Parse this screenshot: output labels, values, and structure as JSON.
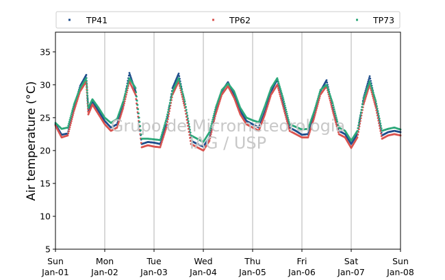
{
  "chart_data": {
    "type": "scatter",
    "ylabel": "Air temperature (°C)",
    "xlabel": "",
    "ylim": [
      5,
      38
    ],
    "yticks": [
      5,
      10,
      15,
      20,
      25,
      30,
      35
    ],
    "xlim": [
      "2000-01-01",
      "2000-01-08"
    ],
    "xtick_days": [
      "Sun",
      "Mon",
      "Tue",
      "Wed",
      "Thu",
      "Fri",
      "Sat",
      "Sun"
    ],
    "xtick_dates": [
      "Jan-01",
      "Jan-02",
      "Jan-03",
      "Jan-04",
      "Jan-05",
      "Jan-06",
      "Jan-07",
      "Jan-08"
    ],
    "grid": "vertical lines at day boundaries",
    "legend_position": "top, above plot, 3 columns",
    "watermark": [
      "Grupo de Micrometeorologia",
      "IAG / USP"
    ],
    "series": [
      {
        "name": "TP41",
        "color": "#1f4e8c",
        "points": [
          [
            "2000-01-01 00:00",
            24.0
          ],
          [
            "2000-01-01 03:00",
            22.4
          ],
          [
            "2000-01-01 06:00",
            22.6
          ],
          [
            "2000-01-01 09:00",
            26.5
          ],
          [
            "2000-01-01 12:00",
            29.8
          ],
          [
            "2000-01-01 15:00",
            31.5
          ],
          [
            "2000-01-01 16:00",
            26.0
          ],
          [
            "2000-01-01 18:00",
            27.5
          ],
          [
            "2000-01-01 21:00",
            26.0
          ],
          [
            "2000-01-02 00:00",
            24.5
          ],
          [
            "2000-01-02 03:00",
            23.5
          ],
          [
            "2000-01-02 06:00",
            24.0
          ],
          [
            "2000-01-02 09:00",
            27.0
          ],
          [
            "2000-01-02 12:00",
            31.8
          ],
          [
            "2000-01-02 15:00",
            29.0
          ],
          [
            "2000-01-02 18:00",
            21.0
          ],
          [
            "2000-01-02 21:00",
            21.3
          ],
          [
            "2000-01-03 00:00",
            21.2
          ],
          [
            "2000-01-03 03:00",
            21.0
          ],
          [
            "2000-01-03 06:00",
            24.0
          ],
          [
            "2000-01-03 09:00",
            29.5
          ],
          [
            "2000-01-03 12:00",
            31.7
          ],
          [
            "2000-01-03 15:00",
            27.0
          ],
          [
            "2000-01-03 18:00",
            21.5
          ],
          [
            "2000-01-03 21:00",
            21.0
          ],
          [
            "2000-01-04 00:00",
            20.6
          ],
          [
            "2000-01-04 03:00",
            22.0
          ],
          [
            "2000-01-04 06:00",
            26.0
          ],
          [
            "2000-01-04 09:00",
            29.0
          ],
          [
            "2000-01-04 12:00",
            30.4
          ],
          [
            "2000-01-04 15:00",
            28.5
          ],
          [
            "2000-01-04 18:00",
            26.0
          ],
          [
            "2000-01-04 21:00",
            24.5
          ],
          [
            "2000-01-05 00:00",
            24.0
          ],
          [
            "2000-01-05 03:00",
            23.5
          ],
          [
            "2000-01-05 06:00",
            26.0
          ],
          [
            "2000-01-05 09:00",
            29.0
          ],
          [
            "2000-01-05 12:00",
            30.8
          ],
          [
            "2000-01-05 15:00",
            27.0
          ],
          [
            "2000-01-05 18:00",
            23.5
          ],
          [
            "2000-01-05 21:00",
            23.0
          ],
          [
            "2000-01-06 00:00",
            22.4
          ],
          [
            "2000-01-06 03:00",
            22.5
          ],
          [
            "2000-01-06 06:00",
            25.5
          ],
          [
            "2000-01-06 09:00",
            29.0
          ],
          [
            "2000-01-06 12:00",
            30.7
          ],
          [
            "2000-01-06 15:00",
            26.5
          ],
          [
            "2000-01-06 18:00",
            23.0
          ],
          [
            "2000-01-06 21:00",
            22.5
          ],
          [
            "2000-01-07 00:00",
            21.0
          ],
          [
            "2000-01-07 03:00",
            22.5
          ],
          [
            "2000-01-07 06:00",
            28.0
          ],
          [
            "2000-01-07 09:00",
            31.3
          ],
          [
            "2000-01-07 12:00",
            27.0
          ],
          [
            "2000-01-07 15:00",
            22.3
          ],
          [
            "2000-01-07 18:00",
            22.8
          ],
          [
            "2000-01-07 21:00",
            23.0
          ],
          [
            "2000-01-08 00:00",
            22.8
          ]
        ]
      },
      {
        "name": "TP62",
        "color": "#d9534f",
        "points": [
          [
            "2000-01-01 00:00",
            23.8
          ],
          [
            "2000-01-01 03:00",
            22.0
          ],
          [
            "2000-01-01 06:00",
            22.3
          ],
          [
            "2000-01-01 09:00",
            26.0
          ],
          [
            "2000-01-01 12:00",
            29.0
          ],
          [
            "2000-01-01 15:00",
            30.5
          ],
          [
            "2000-01-01 16:00",
            25.5
          ],
          [
            "2000-01-01 18:00",
            27.0
          ],
          [
            "2000-01-01 21:00",
            25.5
          ],
          [
            "2000-01-02 00:00",
            24.0
          ],
          [
            "2000-01-02 03:00",
            23.0
          ],
          [
            "2000-01-02 06:00",
            23.5
          ],
          [
            "2000-01-02 09:00",
            26.5
          ],
          [
            "2000-01-02 12:00",
            30.5
          ],
          [
            "2000-01-02 15:00",
            28.5
          ],
          [
            "2000-01-02 18:00",
            20.5
          ],
          [
            "2000-01-02 21:00",
            20.8
          ],
          [
            "2000-01-03 00:00",
            20.6
          ],
          [
            "2000-01-03 03:00",
            20.5
          ],
          [
            "2000-01-03 06:00",
            23.5
          ],
          [
            "2000-01-03 09:00",
            28.5
          ],
          [
            "2000-01-03 12:00",
            30.5
          ],
          [
            "2000-01-03 15:00",
            26.5
          ],
          [
            "2000-01-03 18:00",
            21.0
          ],
          [
            "2000-01-03 21:00",
            20.5
          ],
          [
            "2000-01-04 00:00",
            20.0
          ],
          [
            "2000-01-04 03:00",
            21.5
          ],
          [
            "2000-01-04 06:00",
            25.5
          ],
          [
            "2000-01-04 09:00",
            28.5
          ],
          [
            "2000-01-04 12:00",
            29.8
          ],
          [
            "2000-01-04 15:00",
            28.0
          ],
          [
            "2000-01-04 18:00",
            25.5
          ],
          [
            "2000-01-04 21:00",
            24.0
          ],
          [
            "2000-01-05 00:00",
            23.5
          ],
          [
            "2000-01-05 03:00",
            23.0
          ],
          [
            "2000-01-05 06:00",
            25.5
          ],
          [
            "2000-01-05 09:00",
            28.5
          ],
          [
            "2000-01-05 12:00",
            30.0
          ],
          [
            "2000-01-05 15:00",
            26.5
          ],
          [
            "2000-01-05 18:00",
            23.0
          ],
          [
            "2000-01-05 21:00",
            22.5
          ],
          [
            "2000-01-06 00:00",
            22.0
          ],
          [
            "2000-01-06 03:00",
            22.0
          ],
          [
            "2000-01-06 06:00",
            25.0
          ],
          [
            "2000-01-06 09:00",
            28.5
          ],
          [
            "2000-01-06 12:00",
            29.8
          ],
          [
            "2000-01-06 15:00",
            26.0
          ],
          [
            "2000-01-06 18:00",
            22.5
          ],
          [
            "2000-01-06 21:00",
            22.0
          ],
          [
            "2000-01-07 00:00",
            20.4
          ],
          [
            "2000-01-07 03:00",
            22.0
          ],
          [
            "2000-01-07 06:00",
            27.0
          ],
          [
            "2000-01-07 09:00",
            30.0
          ],
          [
            "2000-01-07 12:00",
            26.5
          ],
          [
            "2000-01-07 15:00",
            21.8
          ],
          [
            "2000-01-07 18:00",
            22.3
          ],
          [
            "2000-01-07 21:00",
            22.5
          ],
          [
            "2000-01-08 00:00",
            22.3
          ]
        ]
      },
      {
        "name": "TP73",
        "color": "#2ca87a",
        "points": [
          [
            "2000-01-01 00:00",
            24.2
          ],
          [
            "2000-01-01 03:00",
            23.3
          ],
          [
            "2000-01-01 06:00",
            23.5
          ],
          [
            "2000-01-01 09:00",
            27.0
          ],
          [
            "2000-01-01 12:00",
            29.5
          ],
          [
            "2000-01-01 15:00",
            31.0
          ],
          [
            "2000-01-01 16:00",
            26.5
          ],
          [
            "2000-01-01 18:00",
            27.8
          ],
          [
            "2000-01-01 21:00",
            26.5
          ],
          [
            "2000-01-02 00:00",
            25.0
          ],
          [
            "2000-01-02 03:00",
            24.2
          ],
          [
            "2000-01-02 06:00",
            24.8
          ],
          [
            "2000-01-02 09:00",
            27.5
          ],
          [
            "2000-01-02 12:00",
            31.0
          ],
          [
            "2000-01-02 15:00",
            29.5
          ],
          [
            "2000-01-02 18:00",
            21.8
          ],
          [
            "2000-01-02 21:00",
            21.8
          ],
          [
            "2000-01-03 00:00",
            21.7
          ],
          [
            "2000-01-03 03:00",
            21.6
          ],
          [
            "2000-01-03 06:00",
            24.8
          ],
          [
            "2000-01-03 09:00",
            29.0
          ],
          [
            "2000-01-03 12:00",
            31.0
          ],
          [
            "2000-01-03 15:00",
            27.5
          ],
          [
            "2000-01-03 18:00",
            22.3
          ],
          [
            "2000-01-03 21:00",
            21.8
          ],
          [
            "2000-01-04 00:00",
            21.3
          ],
          [
            "2000-01-04 03:00",
            22.8
          ],
          [
            "2000-01-04 06:00",
            26.5
          ],
          [
            "2000-01-04 09:00",
            29.2
          ],
          [
            "2000-01-04 12:00",
            30.2
          ],
          [
            "2000-01-04 15:00",
            29.0
          ],
          [
            "2000-01-04 18:00",
            26.5
          ],
          [
            "2000-01-04 21:00",
            25.0
          ],
          [
            "2000-01-05 00:00",
            24.6
          ],
          [
            "2000-01-05 03:00",
            24.3
          ],
          [
            "2000-01-05 06:00",
            26.8
          ],
          [
            "2000-01-05 09:00",
            29.5
          ],
          [
            "2000-01-05 12:00",
            31.0
          ],
          [
            "2000-01-05 15:00",
            27.8
          ],
          [
            "2000-01-05 18:00",
            24.0
          ],
          [
            "2000-01-05 21:00",
            23.6
          ],
          [
            "2000-01-06 00:00",
            23.2
          ],
          [
            "2000-01-06 03:00",
            23.3
          ],
          [
            "2000-01-06 06:00",
            26.0
          ],
          [
            "2000-01-06 09:00",
            29.2
          ],
          [
            "2000-01-06 12:00",
            30.0
          ],
          [
            "2000-01-06 15:00",
            27.2
          ],
          [
            "2000-01-06 18:00",
            23.5
          ],
          [
            "2000-01-06 21:00",
            23.0
          ],
          [
            "2000-01-07 00:00",
            21.5
          ],
          [
            "2000-01-07 03:00",
            23.0
          ],
          [
            "2000-01-07 06:00",
            27.8
          ],
          [
            "2000-01-07 09:00",
            30.5
          ],
          [
            "2000-01-07 12:00",
            27.5
          ],
          [
            "2000-01-07 15:00",
            23.0
          ],
          [
            "2000-01-07 18:00",
            23.3
          ],
          [
            "2000-01-07 21:00",
            23.5
          ],
          [
            "2000-01-08 00:00",
            23.2
          ]
        ]
      }
    ]
  }
}
